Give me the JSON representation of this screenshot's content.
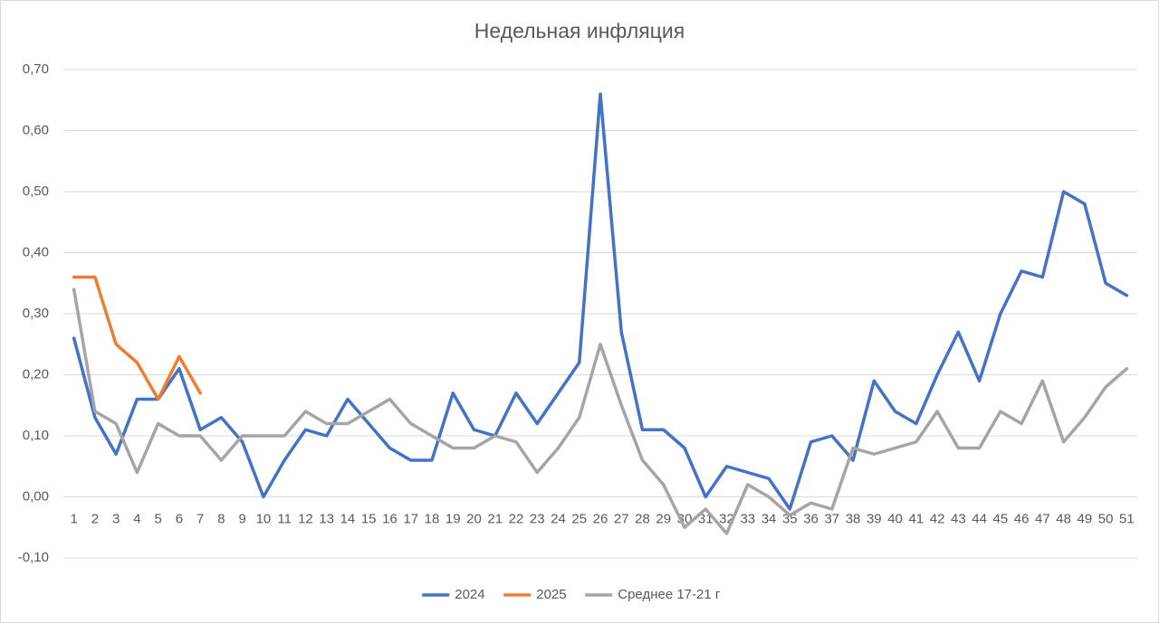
{
  "chart_data": {
    "type": "line",
    "title": "Недельная инфляция",
    "categories": [
      1,
      2,
      3,
      4,
      5,
      6,
      7,
      8,
      9,
      10,
      11,
      12,
      13,
      14,
      15,
      16,
      17,
      18,
      19,
      20,
      21,
      22,
      23,
      24,
      25,
      26,
      27,
      28,
      29,
      30,
      31,
      32,
      33,
      34,
      35,
      36,
      37,
      38,
      39,
      40,
      41,
      42,
      43,
      44,
      45,
      46,
      47,
      48,
      49,
      50,
      51
    ],
    "series": [
      {
        "name": "2024",
        "color": "#4472c4",
        "values": [
          0.26,
          0.13,
          0.07,
          0.16,
          0.16,
          0.21,
          0.11,
          0.13,
          0.09,
          0.0,
          0.06,
          0.11,
          0.1,
          0.16,
          0.12,
          0.08,
          0.06,
          0.06,
          0.17,
          0.11,
          0.1,
          0.17,
          0.12,
          0.17,
          0.22,
          0.66,
          0.27,
          0.11,
          0.11,
          0.08,
          0.0,
          0.05,
          0.04,
          0.03,
          -0.02,
          0.09,
          0.1,
          0.06,
          0.19,
          0.14,
          0.12,
          0.2,
          0.27,
          0.19,
          0.3,
          0.37,
          0.36,
          0.5,
          0.48,
          0.35,
          0.33
        ]
      },
      {
        "name": "2025",
        "color": "#ed7d31",
        "values": [
          0.36,
          0.36,
          0.25,
          0.22,
          0.16,
          0.23,
          0.17,
          null,
          null,
          null,
          null,
          null,
          null,
          null,
          null,
          null,
          null,
          null,
          null,
          null,
          null,
          null,
          null,
          null,
          null,
          null,
          null,
          null,
          null,
          null,
          null,
          null,
          null,
          null,
          null,
          null,
          null,
          null,
          null,
          null,
          null,
          null,
          null,
          null,
          null,
          null,
          null,
          null,
          null,
          null,
          null
        ]
      },
      {
        "name": "Среднее 17-21 г",
        "color": "#a5a5a5",
        "values": [
          0.34,
          0.14,
          0.12,
          0.04,
          0.12,
          0.1,
          0.1,
          0.06,
          0.1,
          0.1,
          0.1,
          0.14,
          0.12,
          0.12,
          0.14,
          0.16,
          0.12,
          0.1,
          0.08,
          0.08,
          0.1,
          0.09,
          0.04,
          0.08,
          0.13,
          0.25,
          0.15,
          0.06,
          0.02,
          -0.05,
          -0.02,
          -0.06,
          0.02,
          0.0,
          -0.03,
          -0.01,
          -0.02,
          0.08,
          0.07,
          0.08,
          0.09,
          0.14,
          0.08,
          0.08,
          0.14,
          0.12,
          0.19,
          0.09,
          0.13,
          0.18,
          0.21
        ]
      }
    ],
    "ylim": [
      -0.1,
      0.7
    ],
    "yticks": [
      {
        "value": -0.1,
        "label": "-0,10"
      },
      {
        "value": 0,
        "label": "0,00"
      },
      {
        "value": 0.1,
        "label": "0,10"
      },
      {
        "value": 0.2,
        "label": "0,20"
      },
      {
        "value": 0.3,
        "label": "0,30"
      },
      {
        "value": 0.4,
        "label": "0,40"
      },
      {
        "value": 0.5,
        "label": "0,50"
      },
      {
        "value": 0.6,
        "label": "0,60"
      },
      {
        "value": 0.7,
        "label": "0,70"
      }
    ],
    "grid": true,
    "legend": "bottom"
  }
}
